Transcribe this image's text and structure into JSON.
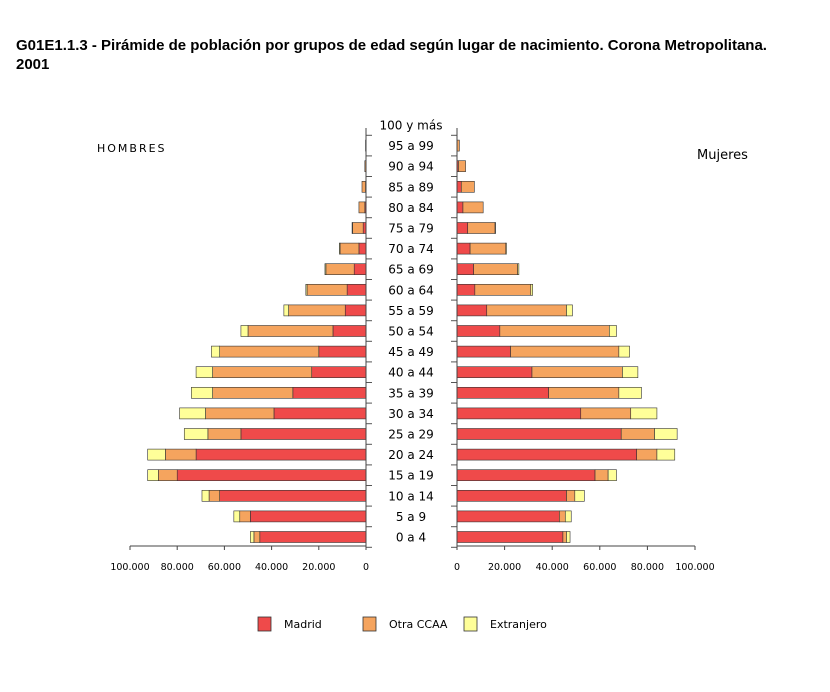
{
  "title_line1": "G01E1.1.3 - Pirámide de población por grupos de edad según lugar de nacimiento. Corona Metropolitana.",
  "title_line2": "2001",
  "chart_data": {
    "type": "bar",
    "subtype": "population-pyramid",
    "left_panel_label": "HOMBRES",
    "right_panel_label": "Mujeres",
    "categories": [
      "100 y más",
      "95 a 99",
      "90 a 94",
      "85 a 89",
      "80 a 84",
      "75 a 79",
      "70 a 74",
      "65 a 69",
      "60 a 64",
      "55 a 59",
      "50 a 54",
      "45 a 49",
      "40 a 44",
      "35 a 39",
      "30 a 34",
      "25 a 29",
      "20 a 24",
      "15 a 19",
      "10 a 14",
      "5 a 9",
      "0 a 4"
    ],
    "xlim": [
      0,
      100000
    ],
    "x_ticks_left": [
      "100.000",
      "80.000",
      "60.000",
      "40.000",
      "20.000",
      "0"
    ],
    "x_ticks_right": [
      "0",
      "20.000",
      "40.000",
      "60.000",
      "80.000",
      "100.000"
    ],
    "stacked": true,
    "legend_position": "bottom",
    "series": [
      {
        "name": "Madrid",
        "color": "#ef4a4a",
        "hombres": [
          0,
          0,
          0,
          200,
          500,
          1200,
          3000,
          5000,
          8000,
          8800,
          14000,
          20000,
          23000,
          31000,
          39000,
          53000,
          72000,
          80000,
          62000,
          49000,
          45000
        ],
        "mujeres": [
          0,
          0,
          600,
          1800,
          2500,
          4500,
          5500,
          7000,
          7500,
          12500,
          18000,
          22500,
          31500,
          38500,
          52000,
          69000,
          75500,
          58000,
          46000,
          43000,
          44500
        ]
      },
      {
        "name": "Otra CCAA",
        "color": "#f5a45e",
        "hombres": [
          0,
          200,
          500,
          1500,
          2500,
          4500,
          8000,
          12000,
          17000,
          24000,
          36000,
          42000,
          42000,
          34000,
          29000,
          14000,
          13000,
          8000,
          4500,
          4500,
          2500
        ],
        "mujeres": [
          0,
          1000,
          3000,
          5500,
          8500,
          11500,
          15000,
          18500,
          23500,
          33500,
          46000,
          45500,
          38000,
          29500,
          21000,
          14000,
          8500,
          5500,
          3500,
          2500,
          1500
        ],
        "total_visible_note": ""
      },
      {
        "name": "Extranjero",
        "color": "#ffff99",
        "hombres": [
          0,
          0,
          0,
          0,
          0,
          200,
          300,
          400,
          500,
          2000,
          3000,
          3500,
          7000,
          9000,
          11000,
          10000,
          7500,
          4500,
          3000,
          2500,
          1500
        ],
        "mujeres": [
          0,
          0,
          0,
          0,
          0,
          200,
          300,
          500,
          800,
          2500,
          3000,
          4500,
          6500,
          9500,
          11000,
          9500,
          7500,
          3500,
          4000,
          2500,
          1500
        ]
      }
    ]
  }
}
